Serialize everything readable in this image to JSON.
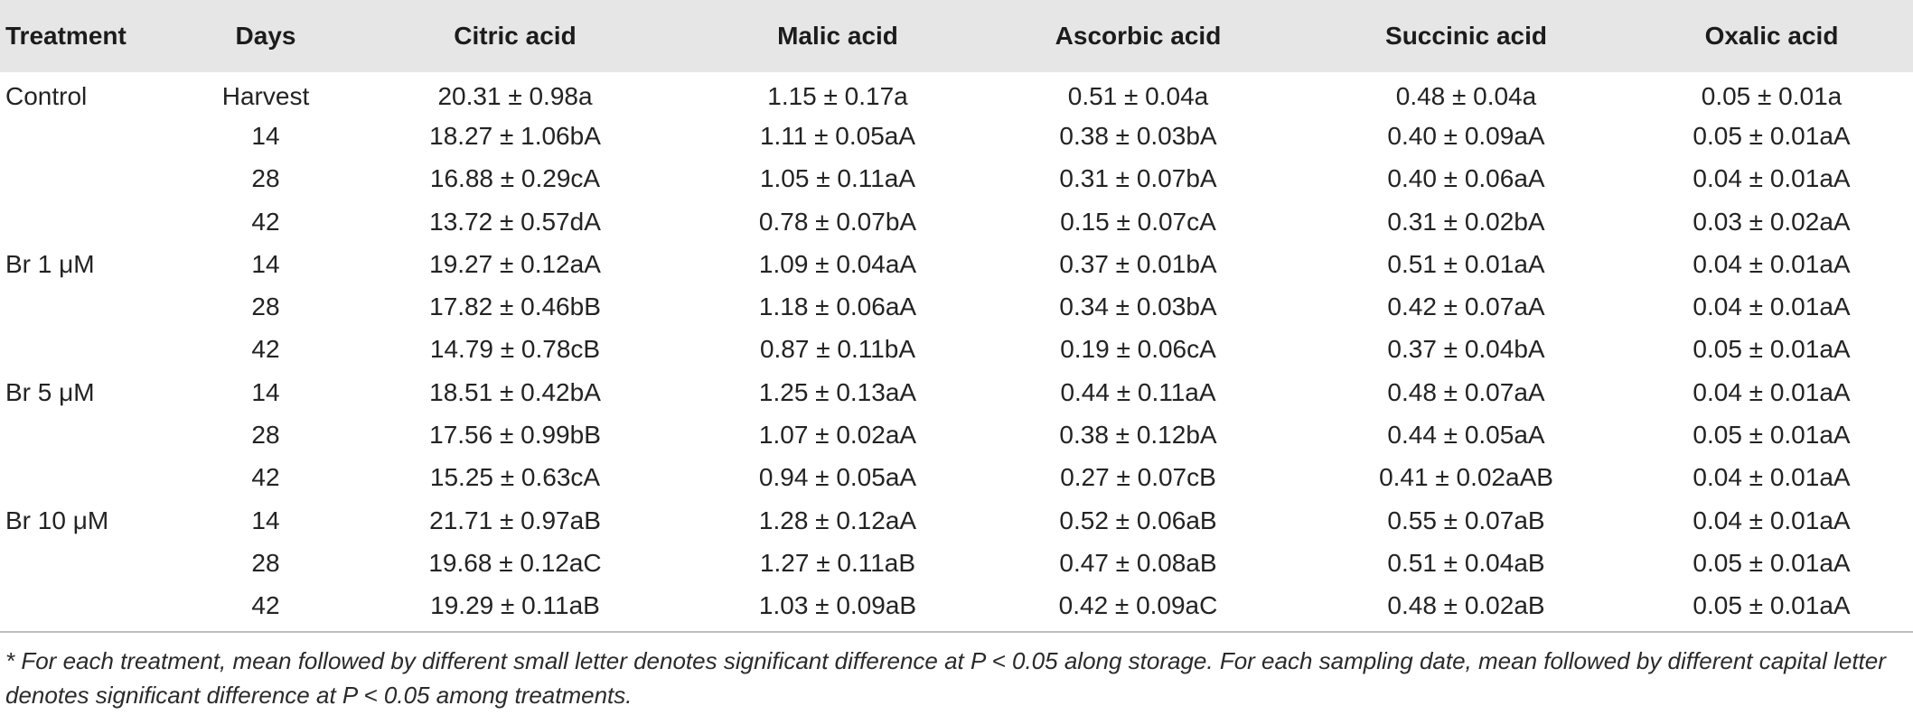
{
  "table": {
    "headers": [
      "Treatment",
      "Days",
      "Citric acid",
      "Malic acid",
      "Ascorbic acid",
      "Succinic acid",
      "Oxalic acid"
    ],
    "rows": [
      [
        "Control",
        "Harvest",
        "20.31 ± 0.98a",
        "1.15 ± 0.17a",
        "0.51 ± 0.04a",
        "0.48 ± 0.04a",
        "0.05 ± 0.01a"
      ],
      [
        "",
        "14",
        "18.27 ± 1.06bA",
        "1.11 ± 0.05aA",
        "0.38 ± 0.03bA",
        "0.40 ± 0.09aA",
        "0.05 ± 0.01aA"
      ],
      [
        "",
        "28",
        "16.88 ± 0.29cA",
        "1.05 ± 0.11aA",
        "0.31 ± 0.07bA",
        "0.40 ± 0.06aA",
        "0.04 ± 0.01aA"
      ],
      [
        "",
        "42",
        "13.72 ± 0.57dA",
        "0.78 ± 0.07bA",
        "0.15 ± 0.07cA",
        "0.31 ± 0.02bA",
        "0.03 ± 0.02aA"
      ],
      [
        "Br 1 μM",
        "14",
        "19.27 ± 0.12aA",
        "1.09 ± 0.04aA",
        "0.37 ± 0.01bA",
        "0.51 ± 0.01aA",
        "0.04 ± 0.01aA"
      ],
      [
        "",
        "28",
        "17.82 ± 0.46bB",
        "1.18 ± 0.06aA",
        "0.34 ± 0.03bA",
        "0.42 ± 0.07aA",
        "0.04 ± 0.01aA"
      ],
      [
        "",
        "42",
        "14.79 ± 0.78cB",
        "0.87 ± 0.11bA",
        "0.19 ± 0.06cA",
        "0.37 ± 0.04bA",
        "0.05 ± 0.01aA"
      ],
      [
        "Br 5 μM",
        "14",
        "18.51 ± 0.42bA",
        "1.25 ± 0.13aA",
        "0.44 ± 0.11aA",
        "0.48 ± 0.07aA",
        "0.04 ± 0.01aA"
      ],
      [
        "",
        "28",
        "17.56 ± 0.99bB",
        "1.07 ± 0.02aA",
        "0.38 ± 0.12bA",
        "0.44 ± 0.05aA",
        "0.05 ± 0.01aA"
      ],
      [
        "",
        "42",
        "15.25 ± 0.63cA",
        "0.94 ± 0.05aA",
        "0.27 ± 0.07cB",
        "0.41 ± 0.02aAB",
        "0.04 ± 0.01aA"
      ],
      [
        "Br 10 μM",
        "14",
        "21.71 ± 0.97aB",
        "1.28 ± 0.12aA",
        "0.52 ± 0.06aB",
        "0.55 ± 0.07aB",
        "0.04 ± 0.01aA"
      ],
      [
        "",
        "28",
        "19.68 ± 0.12aC",
        "1.27 ± 0.11aB",
        "0.47 ± 0.08aB",
        "0.51 ± 0.04aB",
        "0.05 ± 0.01aA"
      ],
      [
        "",
        "42",
        "19.29 ± 0.11aB",
        "1.03 ± 0.09aB",
        "0.42 ± 0.09aC",
        "0.48 ± 0.02aB",
        "0.05 ± 0.01aA"
      ]
    ]
  },
  "footnote": "* For each treatment, mean followed by different small letter denotes significant difference at P < 0.05 along storage. For each sampling date, mean followed by different capital letter denotes significant difference at P < 0.05 among treatments."
}
